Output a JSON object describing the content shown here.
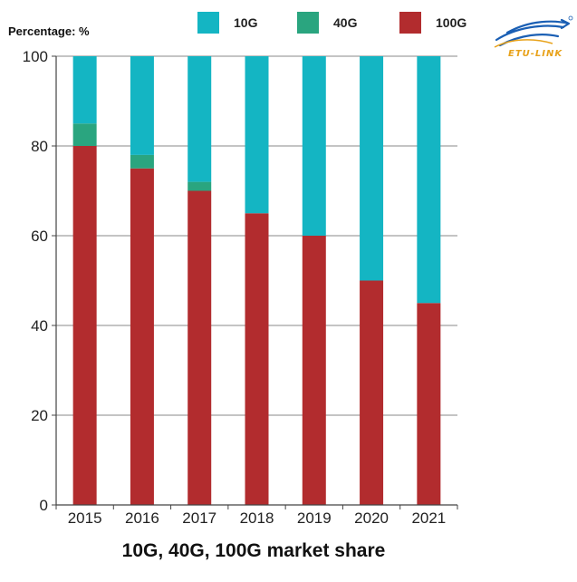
{
  "chart_data": {
    "type": "bar",
    "stacked": true,
    "title": "10G, 40G, 100G market share",
    "ylabel": "Percentage: %",
    "xlabel": "",
    "ylim": [
      0,
      100
    ],
    "yticks": [
      "0",
      "20",
      "40",
      "60",
      "80",
      "100"
    ],
    "grid": true,
    "legend_position": "top",
    "categories": [
      "2015",
      "2016",
      "2017",
      "2018",
      "2019",
      "2020",
      "2021"
    ],
    "series": [
      {
        "name": "100G",
        "color": "#b22c2e",
        "values": [
          80,
          75,
          70,
          65,
          60,
          50,
          45
        ]
      },
      {
        "name": "40G",
        "color": "#2aa57f",
        "values": [
          5,
          3,
          2,
          0,
          0,
          0,
          0
        ]
      },
      {
        "name": "10G",
        "color": "#14b5c3",
        "values": [
          15,
          22,
          28,
          35,
          40,
          50,
          55
        ]
      }
    ],
    "legend_order": [
      "10G",
      "40G",
      "100G"
    ]
  },
  "logo": {
    "text": "ETU-LINK",
    "accent": "#1a5fb4",
    "color": "#e8a21a",
    "icon": "swoosh-arrow-logo"
  }
}
